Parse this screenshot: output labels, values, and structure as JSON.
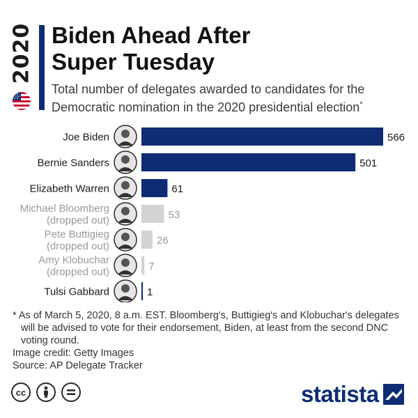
{
  "header": {
    "year": "2020",
    "title_line1": "Biden Ahead After",
    "title_line2": "Super Tuesday",
    "subtitle_line1": "Total number of delegates awarded to candidates for the",
    "subtitle_line2": "Democratic nomination in the 2020 presidential election",
    "subtitle_marker": "*"
  },
  "chart_data": {
    "type": "bar",
    "orientation": "horizontal",
    "categories": [
      "Joe Biden",
      "Bernie Sanders",
      "Elizabeth Warren",
      "Michael Bloomberg",
      "Pete Buttigieg",
      "Amy Klobuchar",
      "Tulsi Gabbard"
    ],
    "category_notes": [
      "",
      "",
      "",
      "(dropped out)",
      "(dropped out)",
      "(dropped out)",
      ""
    ],
    "values": [
      566,
      501,
      61,
      53,
      26,
      7,
      1
    ],
    "active": [
      true,
      true,
      true,
      false,
      false,
      false,
      true
    ],
    "colors": {
      "active": "#0e2c74",
      "dropped": "#d3d3d3"
    },
    "xlim": [
      0,
      566
    ],
    "grid": false,
    "legend": "none"
  },
  "footer": {
    "note": "* As of March 5, 2020, 8 a.m. EST. Bloomberg's, Buttigieg's and Klobuchar's delegates will be advised to vote for their endorsement, Biden, at least from the second DNC voting round.",
    "credit": "Image credit: Getty Images",
    "source": "Source: AP Delegate Tracker",
    "brand": "statista",
    "cc_icons": [
      "cc-icon",
      "person-icon",
      "equals-icon"
    ]
  }
}
